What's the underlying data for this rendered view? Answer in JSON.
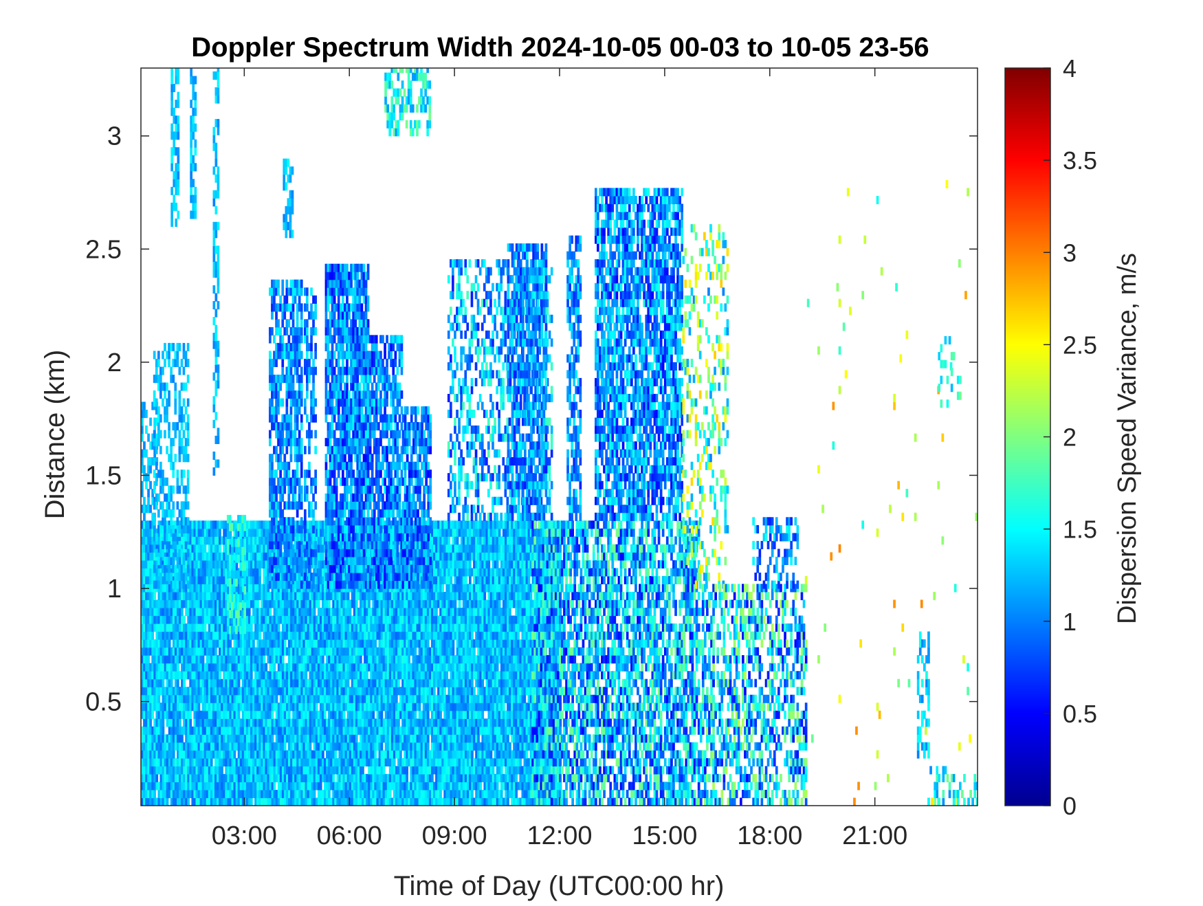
{
  "chart_data": {
    "type": "heatmap",
    "title": "Doppler Spectrum Width 2024-10-05 00-03 to 10-05 23-56",
    "xlabel": "Time of Day (UTC00:00 hr)",
    "ylabel": "Distance (km)",
    "xlim": [
      0.05,
      23.93
    ],
    "ylim": [
      0.04,
      3.3
    ],
    "x_ticks": [
      3,
      6,
      9,
      12,
      15,
      18,
      21
    ],
    "x_tick_labels": [
      "03:00",
      "06:00",
      "09:00",
      "12:00",
      "15:00",
      "18:00",
      "21:00"
    ],
    "y_ticks": [
      0.5,
      1,
      1.5,
      2,
      2.5,
      3
    ],
    "y_tick_labels": [
      "0.5",
      "1",
      "1.5",
      "2",
      "2.5",
      "3"
    ],
    "colorbar": {
      "label": "Dispersion Speed Variance, m/s",
      "range": [
        0,
        4
      ],
      "ticks": [
        0,
        0.5,
        1,
        1.5,
        2,
        2.5,
        3,
        3.5,
        4
      ],
      "tick_labels": [
        "0",
        "0.5",
        "1",
        "1.5",
        "2",
        "2.5",
        "3",
        "3.5",
        "4"
      ],
      "colormap": "jet"
    },
    "regions": [
      {
        "x": [
          0.05,
          12.0
        ],
        "y": [
          0.04,
          1.3
        ],
        "value_range": [
          0.9,
          1.6
        ],
        "density": 0.97
      },
      {
        "x": [
          0.05,
          0.5
        ],
        "y": [
          1.3,
          1.8
        ],
        "value_range": [
          1.0,
          1.5
        ],
        "density": 0.55
      },
      {
        "x": [
          0.4,
          1.4
        ],
        "y": [
          1.0,
          2.05
        ],
        "value_range": [
          1.0,
          1.5
        ],
        "density": 0.45
      },
      {
        "x": [
          0.9,
          1.1
        ],
        "y": [
          2.6,
          3.3
        ],
        "value_range": [
          1.0,
          1.5
        ],
        "density": 0.6
      },
      {
        "x": [
          1.45,
          1.6
        ],
        "y": [
          2.6,
          3.3
        ],
        "value_range": [
          1.0,
          1.5
        ],
        "density": 0.6
      },
      {
        "x": [
          2.1,
          2.25
        ],
        "y": [
          1.5,
          3.3
        ],
        "value_range": [
          1.0,
          1.5
        ],
        "density": 0.5
      },
      {
        "x": [
          2.5,
          3.0
        ],
        "y": [
          0.8,
          1.3
        ],
        "value_range": [
          1.2,
          1.9
        ],
        "density": 0.55
      },
      {
        "x": [
          3.7,
          4.6
        ],
        "y": [
          1.0,
          2.35
        ],
        "value_range": [
          0.6,
          1.5
        ],
        "density": 0.75
      },
      {
        "x": [
          4.1,
          4.35
        ],
        "y": [
          2.55,
          2.9
        ],
        "value_range": [
          1.0,
          1.5
        ],
        "density": 0.5
      },
      {
        "x": [
          4.7,
          5.0
        ],
        "y": [
          1.0,
          2.3
        ],
        "value_range": [
          0.6,
          1.5
        ],
        "density": 0.6
      },
      {
        "x": [
          5.3,
          6.5
        ],
        "y": [
          1.0,
          2.4
        ],
        "value_range": [
          0.5,
          1.5
        ],
        "density": 0.85
      },
      {
        "x": [
          6.5,
          7.5
        ],
        "y": [
          1.0,
          2.1
        ],
        "value_range": [
          0.5,
          1.5
        ],
        "density": 0.8
      },
      {
        "x": [
          7.5,
          8.3
        ],
        "y": [
          1.0,
          1.8
        ],
        "value_range": [
          0.5,
          1.5
        ],
        "density": 0.8
      },
      {
        "x": [
          7.0,
          8.3
        ],
        "y": [
          3.0,
          3.3
        ],
        "value_range": [
          1.1,
          2.0
        ],
        "density": 0.5
      },
      {
        "x": [
          8.8,
          11.8
        ],
        "y": [
          1.3,
          2.45
        ],
        "value_range": [
          0.6,
          1.8
        ],
        "density": 0.4
      },
      {
        "x": [
          10.5,
          11.6
        ],
        "y": [
          1.3,
          2.5
        ],
        "value_range": [
          0.6,
          1.5
        ],
        "density": 0.7
      },
      {
        "x": [
          11.2,
          16.0
        ],
        "y": [
          0.04,
          1.3
        ],
        "value_range": [
          0.5,
          2.0
        ],
        "density": 0.72
      },
      {
        "x": [
          12.2,
          12.6
        ],
        "y": [
          1.3,
          2.55
        ],
        "value_range": [
          0.6,
          1.5
        ],
        "density": 0.7
      },
      {
        "x": [
          13.0,
          15.5
        ],
        "y": [
          1.3,
          2.75
        ],
        "value_range": [
          0.5,
          1.6
        ],
        "density": 0.78
      },
      {
        "x": [
          15.5,
          16.8
        ],
        "y": [
          1.0,
          2.6
        ],
        "value_range": [
          1.0,
          2.7
        ],
        "density": 0.25
      },
      {
        "x": [
          16.0,
          19.0
        ],
        "y": [
          0.04,
          1.0
        ],
        "value_range": [
          0.5,
          2.2
        ],
        "density": 0.55
      },
      {
        "x": [
          17.5,
          18.8
        ],
        "y": [
          1.0,
          1.3
        ],
        "value_range": [
          0.6,
          1.6
        ],
        "density": 0.5
      },
      {
        "x": [
          19.0,
          23.93
        ],
        "y": [
          0.04,
          2.8
        ],
        "value_range": [
          1.5,
          3.0
        ],
        "density": 0.012
      },
      {
        "x": [
          22.2,
          22.5
        ],
        "y": [
          0.25,
          0.8
        ],
        "value_range": [
          1.0,
          1.6
        ],
        "density": 0.45
      },
      {
        "x": [
          22.8,
          23.4
        ],
        "y": [
          1.8,
          2.1
        ],
        "value_range": [
          1.2,
          2.0
        ],
        "density": 0.2
      },
      {
        "x": [
          22.5,
          23.93
        ],
        "y": [
          0.04,
          0.2
        ],
        "value_range": [
          1.0,
          2.0
        ],
        "density": 0.3
      }
    ]
  }
}
